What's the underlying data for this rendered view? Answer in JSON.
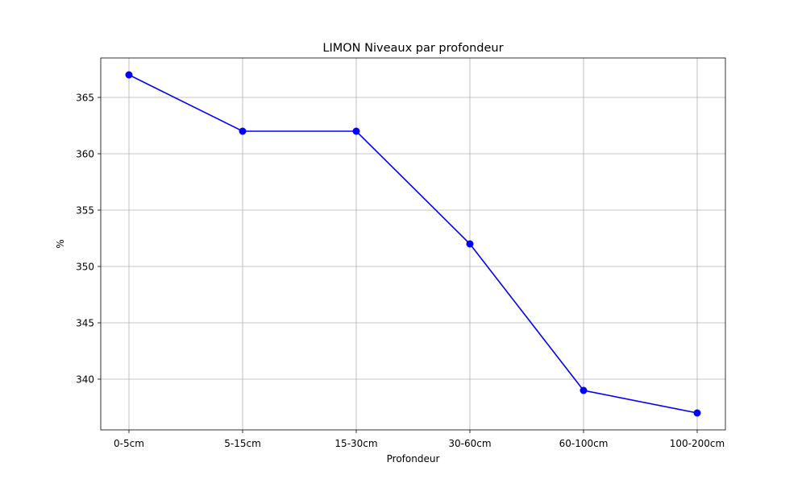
{
  "chart_data": {
    "type": "line",
    "title": "LIMON Niveaux par profondeur",
    "xlabel": "Profondeur",
    "ylabel": "%",
    "categories": [
      "0-5cm",
      "5-15cm",
      "15-30cm",
      "30-60cm",
      "60-100cm",
      "100-200cm"
    ],
    "series": [
      {
        "values": [
          367,
          362,
          362,
          352,
          339,
          337
        ],
        "color": "#0000ff",
        "marker": "circle"
      }
    ],
    "yticks": [
      340,
      345,
      350,
      355,
      360,
      365
    ],
    "ylim": [
      335.5,
      368.5
    ],
    "grid": true,
    "legend": "none"
  }
}
